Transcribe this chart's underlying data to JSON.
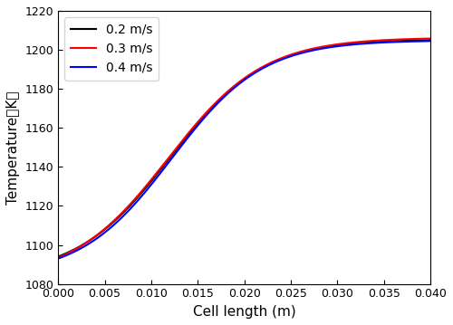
{
  "xlabel": "Cell length (m)",
  "ylabel": "Temperature（K）",
  "xlim": [
    0.0,
    0.04
  ],
  "ylim": [
    1080,
    1220
  ],
  "xticks": [
    0.0,
    0.005,
    0.01,
    0.015,
    0.02,
    0.025,
    0.03,
    0.035,
    0.04
  ],
  "yticks": [
    1080,
    1100,
    1120,
    1140,
    1160,
    1180,
    1200,
    1220
  ],
  "lines": [
    {
      "label": "0.2 m/s",
      "color": "#000000",
      "T0": 1094.0,
      "Tmax": 1205.0,
      "k": 200.0,
      "x0": 0.012
    },
    {
      "label": "0.3 m/s",
      "color": "#ff0000",
      "T0": 1093.5,
      "Tmax": 1205.8,
      "k": 195.0,
      "x0": 0.0118
    },
    {
      "label": "0.4 m/s",
      "color": "#0000ff",
      "T0": 1093.0,
      "Tmax": 1204.5,
      "k": 205.0,
      "x0": 0.0122
    }
  ],
  "legend_loc": "upper left",
  "linewidth": 1.5,
  "figsize": [
    5.0,
    3.59
  ],
  "dpi": 100
}
